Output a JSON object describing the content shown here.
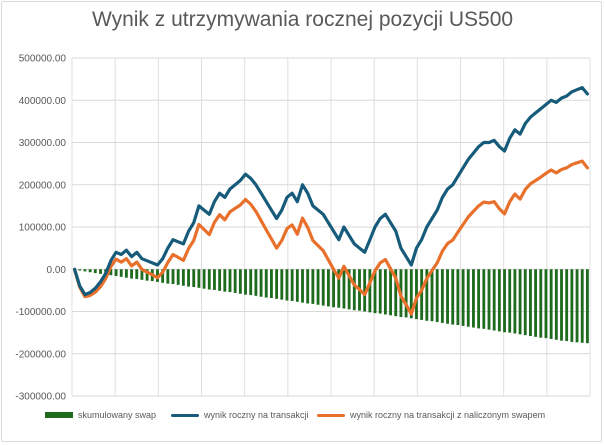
{
  "chart_data": {
    "type": "line",
    "title": "Wynik z utrzymywania rocznej pozycji US500",
    "xlabel": "",
    "ylabel": "",
    "ylim": [
      -300000,
      500000
    ],
    "yticks": [
      "500000.00",
      "400000.00",
      "300000.00",
      "200000.00",
      "100000.00",
      "0.00",
      "-100000.00",
      "-200000.00",
      "-300000.00"
    ],
    "grid": true,
    "legend": "bottom",
    "n_points": 100,
    "series": [
      {
        "name": "skumulowany swap",
        "kind": "bar",
        "color": "#1e6b1e",
        "values": [
          -1000,
          -3000,
          -5000,
          -7000,
          -9000,
          -11000,
          -12000,
          -14000,
          -16000,
          -18000,
          -20000,
          -22000,
          -23000,
          -25000,
          -27000,
          -28000,
          -30000,
          -32000,
          -34000,
          -35000,
          -37000,
          -39000,
          -41000,
          -42000,
          -44000,
          -46000,
          -48000,
          -49000,
          -51000,
          -53000,
          -54000,
          -56000,
          -58000,
          -60000,
          -61000,
          -63000,
          -65000,
          -67000,
          -68000,
          -70000,
          -72000,
          -74000,
          -75000,
          -77000,
          -79000,
          -81000,
          -82000,
          -84000,
          -86000,
          -88000,
          -90000,
          -91000,
          -93000,
          -95000,
          -97000,
          -98000,
          -100000,
          -102000,
          -104000,
          -105000,
          -107000,
          -109000,
          -111000,
          -113000,
          -114000,
          -116000,
          -118000,
          -120000,
          -122000,
          -123000,
          -125000,
          -127000,
          -129000,
          -131000,
          -132000,
          -134000,
          -136000,
          -138000,
          -140000,
          -141000,
          -143000,
          -145000,
          -147000,
          -149000,
          -150000,
          -152000,
          -154000,
          -156000,
          -158000,
          -160000,
          -162000,
          -163000,
          -165000,
          -167000,
          -169000,
          -170000,
          -172000,
          -173000,
          -174000,
          -175000
        ]
      },
      {
        "name": "wynik roczny na transakcji",
        "kind": "line",
        "color": "#165b7a",
        "values": [
          0,
          -40000,
          -60000,
          -55000,
          -45000,
          -30000,
          -10000,
          20000,
          40000,
          35000,
          45000,
          30000,
          40000,
          25000,
          20000,
          15000,
          10000,
          25000,
          50000,
          70000,
          65000,
          60000,
          90000,
          110000,
          150000,
          140000,
          130000,
          160000,
          180000,
          170000,
          190000,
          200000,
          210000,
          225000,
          215000,
          200000,
          180000,
          160000,
          140000,
          120000,
          140000,
          170000,
          180000,
          160000,
          200000,
          180000,
          150000,
          140000,
          130000,
          110000,
          90000,
          70000,
          100000,
          80000,
          60000,
          50000,
          40000,
          70000,
          100000,
          120000,
          130000,
          110000,
          90000,
          50000,
          30000,
          10000,
          50000,
          70000,
          100000,
          120000,
          140000,
          170000,
          190000,
          200000,
          220000,
          240000,
          260000,
          275000,
          290000,
          300000,
          300000,
          305000,
          290000,
          280000,
          310000,
          330000,
          320000,
          345000,
          360000,
          370000,
          380000,
          390000,
          400000,
          395000,
          405000,
          410000,
          420000,
          425000,
          430000,
          415000
        ]
      },
      {
        "name": "wynik roczny na transakcji z naliczonym swapem",
        "kind": "line",
        "color": "#e8702a",
        "values": [
          -1000,
          -43000,
          -65000,
          -62000,
          -54000,
          -41000,
          -22000,
          6000,
          24000,
          17000,
          25000,
          8000,
          17000,
          0,
          -7000,
          -13000,
          -20000,
          -7000,
          16000,
          35000,
          28000,
          21000,
          49000,
          68000,
          106000,
          94000,
          82000,
          111000,
          129000,
          117000,
          136000,
          144000,
          152000,
          165000,
          154000,
          137000,
          115000,
          93000,
          72000,
          50000,
          68000,
          96000,
          105000,
          83000,
          121000,
          99000,
          68000,
          56000,
          44000,
          22000,
          0,
          -21000,
          7000,
          -15000,
          -37000,
          -48000,
          -60000,
          -32000,
          -4000,
          15000,
          23000,
          1000,
          -21000,
          -63000,
          -84000,
          -106000,
          -68000,
          -50000,
          -22000,
          -3000,
          15000,
          43000,
          61000,
          69000,
          88000,
          106000,
          124000,
          137000,
          150000,
          159000,
          157000,
          160000,
          143000,
          131000,
          160000,
          178000,
          166000,
          189000,
          202000,
          210000,
          218000,
          227000,
          235000,
          228000,
          236000,
          240000,
          248000,
          252000,
          256000,
          240000
        ]
      }
    ]
  }
}
